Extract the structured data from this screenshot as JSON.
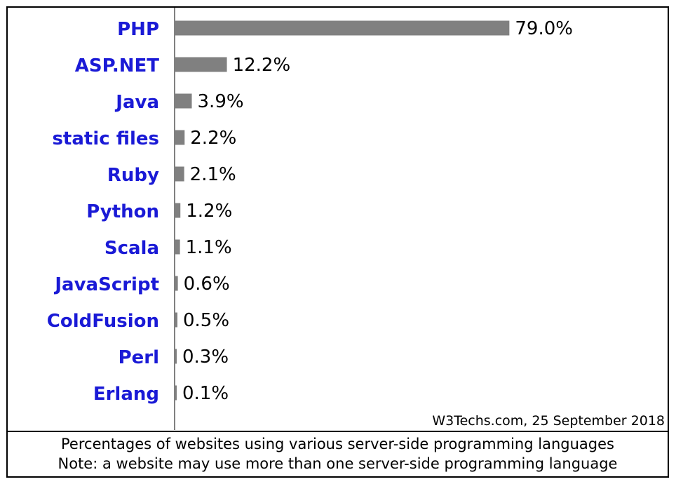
{
  "chart_data": {
    "type": "bar",
    "orientation": "horizontal",
    "categories": [
      "PHP",
      "ASP.NET",
      "Java",
      "static files",
      "Ruby",
      "Python",
      "Scala",
      "JavaScript",
      "ColdFusion",
      "Perl",
      "Erlang"
    ],
    "values": [
      79.0,
      12.2,
      3.9,
      2.2,
      2.1,
      1.2,
      1.1,
      0.6,
      0.5,
      0.3,
      0.1
    ],
    "value_labels": [
      "79.0%",
      "12.2%",
      "3.9%",
      "2.2%",
      "2.1%",
      "1.2%",
      "1.1%",
      "0.6%",
      "0.5%",
      "0.3%",
      "0.1%"
    ],
    "unit": "%",
    "xlim": [
      0,
      100
    ],
    "grid": false,
    "legend": "none",
    "colors": {
      "bar": "#808080",
      "category_label": "#1a1ad6",
      "axis": "#808080",
      "border": "#000000"
    }
  },
  "source": "W3Techs.com, 25 September 2018",
  "caption": {
    "line1": "Percentages of websites using various server-side programming languages",
    "line2": "Note: a website may use more than one server-side programming language"
  }
}
